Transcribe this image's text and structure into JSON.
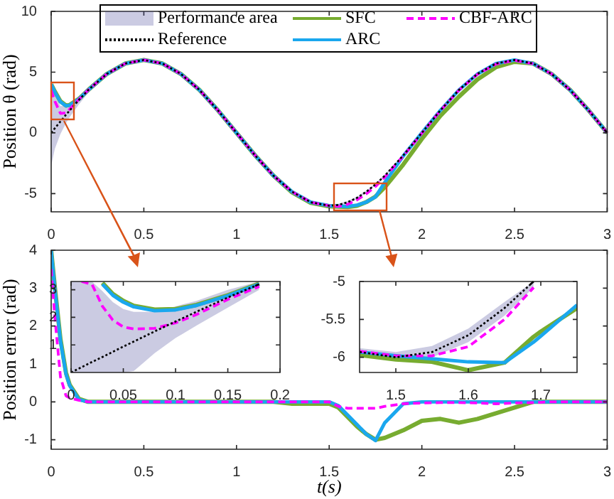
{
  "chart_data": [
    {
      "type": "line",
      "ylabel": "Position θ (rad)",
      "legend": "top",
      "annotations": [
        "Performance area"
      ],
      "xlim": [
        0,
        3
      ],
      "ylim": [
        -6.5,
        10
      ],
      "xticks": [
        0,
        0.5,
        1,
        1.5,
        2,
        2.5,
        3
      ],
      "yticks": [
        -5,
        0,
        5,
        10
      ],
      "x": [
        0,
        0.02,
        0.05,
        0.08,
        0.1,
        0.15,
        0.2,
        0.3,
        0.4,
        0.5,
        0.6,
        0.7,
        0.8,
        0.9,
        1,
        1.1,
        1.2,
        1.3,
        1.4,
        1.5,
        1.55,
        1.6,
        1.65,
        1.7,
        1.75,
        1.8,
        1.9,
        2,
        2.1,
        2.2,
        2.3,
        2.4,
        2.5,
        2.6,
        2.7,
        2.8,
        2.9,
        3
      ],
      "series": [
        {
          "name": "SFC",
          "color": "#77ac30",
          "line_style": "solid",
          "values": [
            4,
            3.4,
            2.6,
            2.25,
            2.3,
            2.8,
            3.53,
            4.85,
            5.71,
            6,
            5.71,
            4.85,
            3.53,
            1.85,
            0,
            -1.85,
            -3.53,
            -4.9,
            -5.76,
            -6.05,
            -6.08,
            -6.11,
            -6,
            -5.7,
            -5.24,
            -4.48,
            -2.6,
            -0.5,
            1.4,
            2.98,
            4.4,
            5.41,
            5.85,
            5.71,
            4.85,
            3.53,
            1.85,
            0
          ]
        },
        {
          "name": "ARC",
          "color": "#1aa7ee",
          "line_style": "solid",
          "values": [
            4,
            3.35,
            2.55,
            2.22,
            2.28,
            2.78,
            3.53,
            4.85,
            5.71,
            6,
            5.71,
            4.85,
            3.53,
            1.85,
            0,
            -1.85,
            -3.53,
            -4.85,
            -5.71,
            -6,
            -6.03,
            -6.06,
            -5.95,
            -5.7,
            -5.26,
            -4.08,
            -1.9,
            0,
            1.85,
            3.53,
            4.85,
            5.71,
            6,
            5.71,
            4.85,
            3.53,
            1.85,
            0
          ]
        },
        {
          "name": "CBF-ARC",
          "color": "#ff00ff",
          "line_style": "dashed",
          "values": [
            3.5,
            2.6,
            1.6,
            1.65,
            1.95,
            2.76,
            3.53,
            4.85,
            5.71,
            6,
            5.71,
            4.85,
            3.53,
            1.85,
            0,
            -1.85,
            -3.53,
            -4.85,
            -5.71,
            -6,
            -6.05,
            -5.88,
            -5.52,
            -5.02,
            -4.41,
            -3.65,
            -1.9,
            -0.03,
            1.83,
            3.51,
            4.82,
            5.66,
            5.97,
            5.69,
            4.85,
            3.53,
            1.85,
            0
          ]
        },
        {
          "name": "Reference",
          "color": "#000000",
          "line_style": "dotted",
          "values": [
            0,
            0.38,
            0.94,
            1.49,
            1.85,
            2.72,
            3.53,
            4.85,
            5.71,
            6,
            5.71,
            4.85,
            3.53,
            1.85,
            0,
            -1.85,
            -3.53,
            -4.85,
            -5.71,
            -6,
            -5.93,
            -5.71,
            -5.35,
            -4.85,
            -4.24,
            -3.53,
            -1.85,
            0,
            1.85,
            3.53,
            4.85,
            5.71,
            6,
            5.71,
            4.85,
            3.53,
            1.85,
            0
          ],
          "lower": [
            -2.7,
            -1.3,
            -0.1,
            0.8,
            1.3,
            2.35,
            3.3,
            4.7,
            5.61,
            5.9,
            5.61,
            4.75,
            3.43,
            1.75,
            -0.1,
            -1.95,
            -3.63,
            -4.95,
            -5.81,
            -6.1,
            -6.03,
            -5.81,
            -5.45,
            -4.95,
            -4.34,
            -3.63,
            -1.95,
            -0.1,
            1.75,
            3.43,
            4.75,
            5.61,
            5.9,
            5.61,
            4.75,
            3.43,
            1.75,
            -0.1
          ],
          "upper": [
            4,
            3.3,
            2.2,
            2.25,
            2.45,
            3.05,
            3.75,
            5,
            5.81,
            6.1,
            5.81,
            4.95,
            3.63,
            1.95,
            0.1,
            -1.75,
            -3.43,
            -4.75,
            -5.61,
            -5.9,
            -5.83,
            -5.61,
            -5.25,
            -4.75,
            -4.14,
            -3.43,
            -1.75,
            0.1,
            1.95,
            3.63,
            4.95,
            5.81,
            6.1,
            5.81,
            4.95,
            3.63,
            1.95,
            0.1
          ]
        }
      ]
    },
    {
      "type": "line",
      "xlabel": "t(s)",
      "ylabel": "Position error (rad)",
      "xlim": [
        0,
        3
      ],
      "ylim": [
        -1.25,
        4
      ],
      "xticks": [
        0,
        0.5,
        1,
        1.5,
        2,
        2.5,
        3
      ],
      "yticks": [
        -1,
        0,
        1,
        2,
        3,
        4
      ],
      "x": [
        0,
        0.02,
        0.05,
        0.08,
        0.1,
        0.15,
        0.2,
        0.3,
        0.4,
        0.5,
        0.6,
        0.7,
        0.8,
        0.9,
        1,
        1.1,
        1.2,
        1.3,
        1.4,
        1.5,
        1.55,
        1.6,
        1.65,
        1.7,
        1.75,
        1.8,
        1.9,
        2,
        2.1,
        2.2,
        2.3,
        2.4,
        2.5,
        2.6,
        2.7,
        2.8,
        2.9,
        3
      ],
      "series": [
        {
          "color": "#77ac30",
          "line_style": "solid",
          "values": [
            4,
            3.02,
            1.66,
            0.77,
            0.45,
            0.08,
            0,
            0,
            0,
            0,
            0,
            0,
            0,
            0,
            0,
            0,
            0,
            -0.05,
            -0.05,
            -0.05,
            -0.15,
            -0.4,
            -0.65,
            -0.85,
            -1,
            -0.95,
            -0.75,
            -0.5,
            -0.45,
            -0.55,
            -0.45,
            -0.3,
            -0.15,
            0,
            0,
            0,
            0,
            0
          ]
        },
        {
          "color": "#1aa7ee",
          "line_style": "solid",
          "values": [
            4,
            2.97,
            1.61,
            0.73,
            0.43,
            0.06,
            0,
            0,
            0,
            0,
            0,
            0,
            0,
            0,
            0,
            0,
            0,
            0,
            0,
            0,
            -0.1,
            -0.35,
            -0.6,
            -0.85,
            -1.02,
            -0.55,
            -0.05,
            0,
            0,
            0,
            0,
            0,
            0,
            0,
            0,
            0,
            0,
            0
          ]
        },
        {
          "color": "#ff00ff",
          "line_style": "dashed",
          "values": [
            3.5,
            2.22,
            0.66,
            0.16,
            0.1,
            0.04,
            0,
            0,
            0,
            0,
            0,
            0,
            0,
            0,
            0,
            0,
            0,
            0,
            0,
            0,
            -0.12,
            -0.17,
            -0.17,
            -0.17,
            -0.17,
            -0.12,
            -0.05,
            -0.03,
            -0.02,
            -0.02,
            -0.03,
            -0.05,
            -0.03,
            -0.02,
            0,
            0,
            0,
            0
          ]
        }
      ]
    },
    {
      "type": "line",
      "xlim": [
        0,
        0.2
      ],
      "ylim": [
        0,
        3.3
      ],
      "xticks": [
        0,
        0.05,
        0.1,
        0.15,
        0.2
      ],
      "yticks": [
        1,
        2,
        3
      ],
      "x": [
        0,
        0.01,
        0.02,
        0.03,
        0.04,
        0.05,
        0.06,
        0.08,
        0.1,
        0.12,
        0.15,
        0.18
      ],
      "series": [
        {
          "color": "#77ac30",
          "line_style": "solid",
          "values": [
            null,
            null,
            null,
            3.25,
            2.85,
            2.6,
            2.42,
            2.28,
            2.3,
            2.45,
            2.8,
            3.22
          ]
        },
        {
          "color": "#1aa7ee",
          "line_style": "solid",
          "values": [
            null,
            null,
            null,
            3.2,
            2.8,
            2.55,
            2.38,
            2.24,
            2.27,
            2.43,
            2.78,
            3.2
          ]
        },
        {
          "color": "#ff00ff",
          "line_style": "dashed",
          "values": [
            null,
            3.3,
            3.2,
            2.4,
            1.9,
            1.65,
            1.58,
            1.6,
            1.8,
            2.1,
            2.65,
            3.12
          ]
        },
        {
          "color": "#000000",
          "line_style": "dotted",
          "values": [
            0,
            0.19,
            0.38,
            0.56,
            0.75,
            0.94,
            1.12,
            1.49,
            1.85,
            2.2,
            2.72,
            3.2
          ],
          "lower": [
            0,
            0,
            0,
            0,
            0,
            0,
            0.05,
            0.7,
            1.25,
            1.7,
            2.35,
            3
          ],
          "upper": [
            3.3,
            3.3,
            3.3,
            2.95,
            2.55,
            2.3,
            2.2,
            2.2,
            2.4,
            2.6,
            3,
            3.3
          ]
        }
      ]
    },
    {
      "type": "line",
      "xlim": [
        1.45,
        1.75
      ],
      "ylim": [
        -6.2,
        -5
      ],
      "xticks": [
        1.5,
        1.6,
        1.7
      ],
      "yticks": [
        -6,
        -5.5,
        -5
      ],
      "x": [
        1.45,
        1.5,
        1.55,
        1.6,
        1.65,
        1.69,
        1.7,
        1.75
      ],
      "series": [
        {
          "color": "#77ac30",
          "line_style": "solid",
          "values": [
            -5.97,
            -6.03,
            -6.06,
            -6.17,
            -6.07,
            -5.73,
            -5.66,
            -5.35
          ]
        },
        {
          "color": "#1aa7ee",
          "line_style": "solid",
          "values": [
            -5.93,
            -5.98,
            -6.02,
            -6.06,
            -6.07,
            -5.8,
            -5.72,
            -5.31
          ]
        },
        {
          "color": "#ff00ff",
          "line_style": "dashed",
          "values": [
            -5.92,
            -5.98,
            -5.98,
            -5.86,
            -5.5,
            -5.08,
            null,
            null
          ]
        },
        {
          "color": "#000000",
          "line_style": "dotted",
          "values": [
            -5.93,
            -6,
            -5.93,
            -5.71,
            -5.35,
            -5,
            null,
            null
          ],
          "lower": [
            -5.98,
            -6.05,
            -6,
            -5.8,
            -5.45,
            -5.08,
            null,
            null
          ],
          "upper": [
            -5.88,
            -5.93,
            -5.85,
            -5.62,
            -5.27,
            -5,
            null,
            null
          ]
        }
      ]
    }
  ]
}
